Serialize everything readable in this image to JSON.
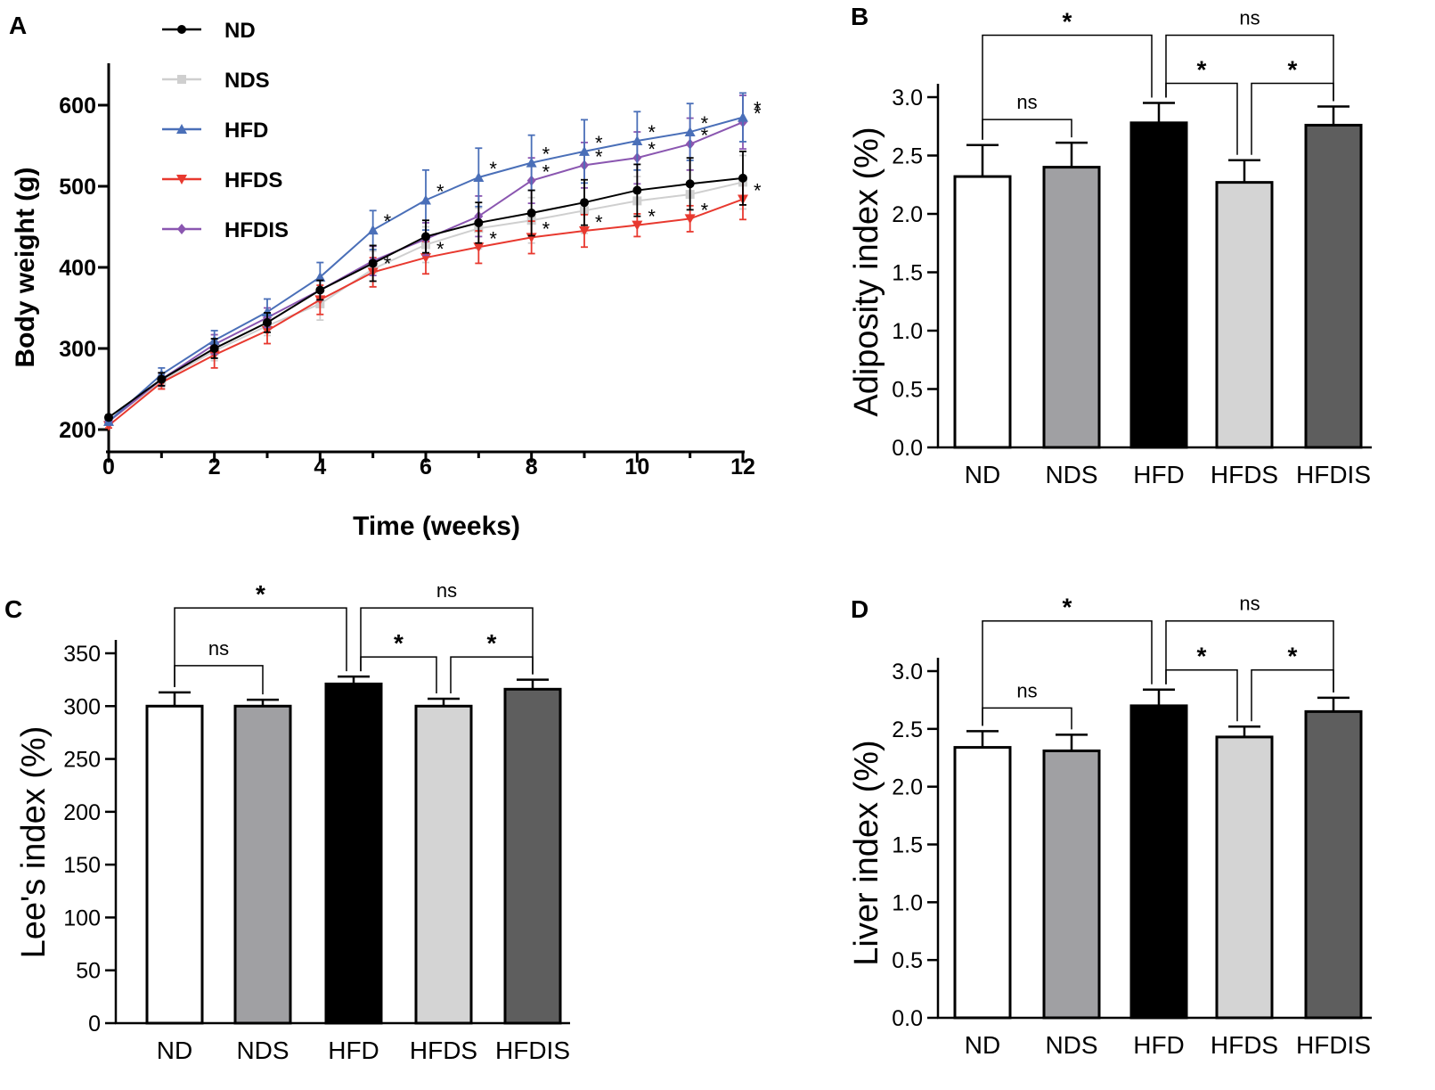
{
  "chart_data": [
    {
      "id": "A",
      "panel_label": "A",
      "type": "line",
      "xlabel": "Time (weeks)",
      "ylabel": "Body weight (g)",
      "xlim": [
        0,
        12
      ],
      "ylim": [
        200,
        650
      ],
      "xticks": [
        0,
        2,
        4,
        6,
        8,
        10,
        12
      ],
      "yticks": [
        200,
        300,
        400,
        500,
        600
      ],
      "x": [
        0,
        1,
        2,
        3,
        4,
        5,
        6,
        7,
        8,
        9,
        10,
        11,
        12
      ],
      "significance_mark": "*",
      "series": [
        {
          "name": "ND",
          "color": "#000000",
          "marker": "circle",
          "values": [
            215,
            262,
            300,
            332,
            372,
            405,
            438,
            455,
            467,
            480,
            495,
            503,
            510
          ],
          "errors": [
            3,
            8,
            12,
            12,
            12,
            22,
            20,
            25,
            28,
            28,
            32,
            32,
            33
          ],
          "stars": []
        },
        {
          "name": "NDS",
          "color": "#cfcfcf",
          "marker": "square",
          "values": [
            210,
            260,
            297,
            328,
            355,
            398,
            428,
            448,
            458,
            470,
            482,
            490,
            505
          ],
          "errors": [
            3,
            8,
            12,
            12,
            20,
            22,
            22,
            25,
            28,
            28,
            30,
            30,
            33
          ],
          "stars": []
        },
        {
          "name": "HFD",
          "color": "#4a6fb8",
          "marker": "triangle",
          "values": [
            210,
            268,
            310,
            345,
            388,
            446,
            483,
            511,
            529,
            543,
            556,
            567,
            585
          ],
          "errors": [
            3,
            8,
            12,
            16,
            18,
            24,
            37,
            36,
            34,
            39,
            36,
            35,
            30
          ],
          "stars": [
            5,
            6,
            7,
            8,
            9,
            10,
            11,
            12
          ]
        },
        {
          "name": "HFDS",
          "color": "#e8392f",
          "marker": "triangle-down",
          "values": [
            205,
            258,
            292,
            322,
            360,
            394,
            412,
            425,
            437,
            445,
            452,
            460,
            484
          ],
          "errors": [
            3,
            8,
            16,
            16,
            18,
            18,
            20,
            20,
            20,
            20,
            14,
            16,
            25
          ],
          "stars": [
            5,
            6,
            7,
            8,
            9,
            10,
            11,
            12
          ]
        },
        {
          "name": "HFDIS",
          "color": "#8a56b0",
          "marker": "diamond",
          "values": [
            210,
            262,
            305,
            338,
            372,
            408,
            435,
            463,
            507,
            526,
            535,
            552,
            579
          ],
          "errors": [
            3,
            8,
            12,
            12,
            12,
            18,
            20,
            25,
            28,
            28,
            32,
            32,
            33
          ],
          "stars": [
            8,
            9,
            10,
            11,
            12
          ]
        }
      ]
    },
    {
      "id": "B",
      "panel_label": "B",
      "type": "bar",
      "ylabel": "Adiposity index  (%)",
      "ylim": [
        0,
        3.0
      ],
      "yticks": [
        "0.0",
        "0.5",
        "1.0",
        "1.5",
        "2.0",
        "2.5",
        "3.0"
      ],
      "categories": [
        "ND",
        "NDS",
        "HFD",
        "HFDS",
        "HFDIS"
      ],
      "bar_colors": [
        "#ffffff",
        "#a0a0a3",
        "#000000",
        "#d4d4d4",
        "#5e5e5e"
      ],
      "values": [
        2.32,
        2.4,
        2.78,
        2.27,
        2.76
      ],
      "errors": [
        0.27,
        0.21,
        0.17,
        0.19,
        0.16
      ],
      "comparisons": [
        {
          "from": "ND",
          "to": "NDS",
          "label": "ns",
          "level": 0
        },
        {
          "from": "HFD",
          "to": "HFDS",
          "label": "*",
          "level": 0
        },
        {
          "from": "HFDS",
          "to": "HFDIS",
          "label": "*",
          "level": 0
        },
        {
          "from": "ND",
          "to": "HFD",
          "label": "*",
          "level": 1
        },
        {
          "from": "HFD",
          "to": "HFDIS",
          "label": "ns",
          "level": 1
        }
      ]
    },
    {
      "id": "C",
      "panel_label": "C",
      "type": "bar",
      "ylabel": "Lee's index  (%)",
      "ylim": [
        0,
        350
      ],
      "yticks": [
        "0",
        "50",
        "100",
        "150",
        "200",
        "250",
        "300",
        "350"
      ],
      "categories": [
        "ND",
        "NDS",
        "HFD",
        "HFDS",
        "HFDIS"
      ],
      "bar_colors": [
        "#ffffff",
        "#a0a0a3",
        "#000000",
        "#d4d4d4",
        "#5e5e5e"
      ],
      "values": [
        300,
        300,
        321,
        300,
        316
      ],
      "errors": [
        13,
        6,
        7,
        7,
        9
      ],
      "comparisons": [
        {
          "from": "ND",
          "to": "NDS",
          "label": "ns",
          "level": 0
        },
        {
          "from": "HFD",
          "to": "HFDS",
          "label": "*",
          "level": 0
        },
        {
          "from": "HFDS",
          "to": "HFDIS",
          "label": "*",
          "level": 0
        },
        {
          "from": "ND",
          "to": "HFD",
          "label": "*",
          "level": 1
        },
        {
          "from": "HFD",
          "to": "HFDIS",
          "label": "ns",
          "level": 1
        }
      ]
    },
    {
      "id": "D",
      "panel_label": "D",
      "type": "bar",
      "ylabel": "Liver index  (%)",
      "ylim": [
        0,
        3.0
      ],
      "yticks": [
        "0.0",
        "0.5",
        "1.0",
        "1.5",
        "2.0",
        "2.5",
        "3.0"
      ],
      "categories": [
        "ND",
        "NDS",
        "HFD",
        "HFDS",
        "HFDIS"
      ],
      "bar_colors": [
        "#ffffff",
        "#a0a0a3",
        "#000000",
        "#d4d4d4",
        "#5e5e5e"
      ],
      "values": [
        2.34,
        2.31,
        2.7,
        2.43,
        2.65
      ],
      "errors": [
        0.14,
        0.14,
        0.14,
        0.09,
        0.12
      ],
      "comparisons": [
        {
          "from": "ND",
          "to": "NDS",
          "label": "ns",
          "level": 0
        },
        {
          "from": "HFD",
          "to": "HFDS",
          "label": "*",
          "level": 0
        },
        {
          "from": "HFDS",
          "to": "HFDIS",
          "label": "*",
          "level": 0
        },
        {
          "from": "ND",
          "to": "HFD",
          "label": "*",
          "level": 1
        },
        {
          "from": "HFD",
          "to": "HFDIS",
          "label": "ns",
          "level": 1
        }
      ]
    }
  ]
}
